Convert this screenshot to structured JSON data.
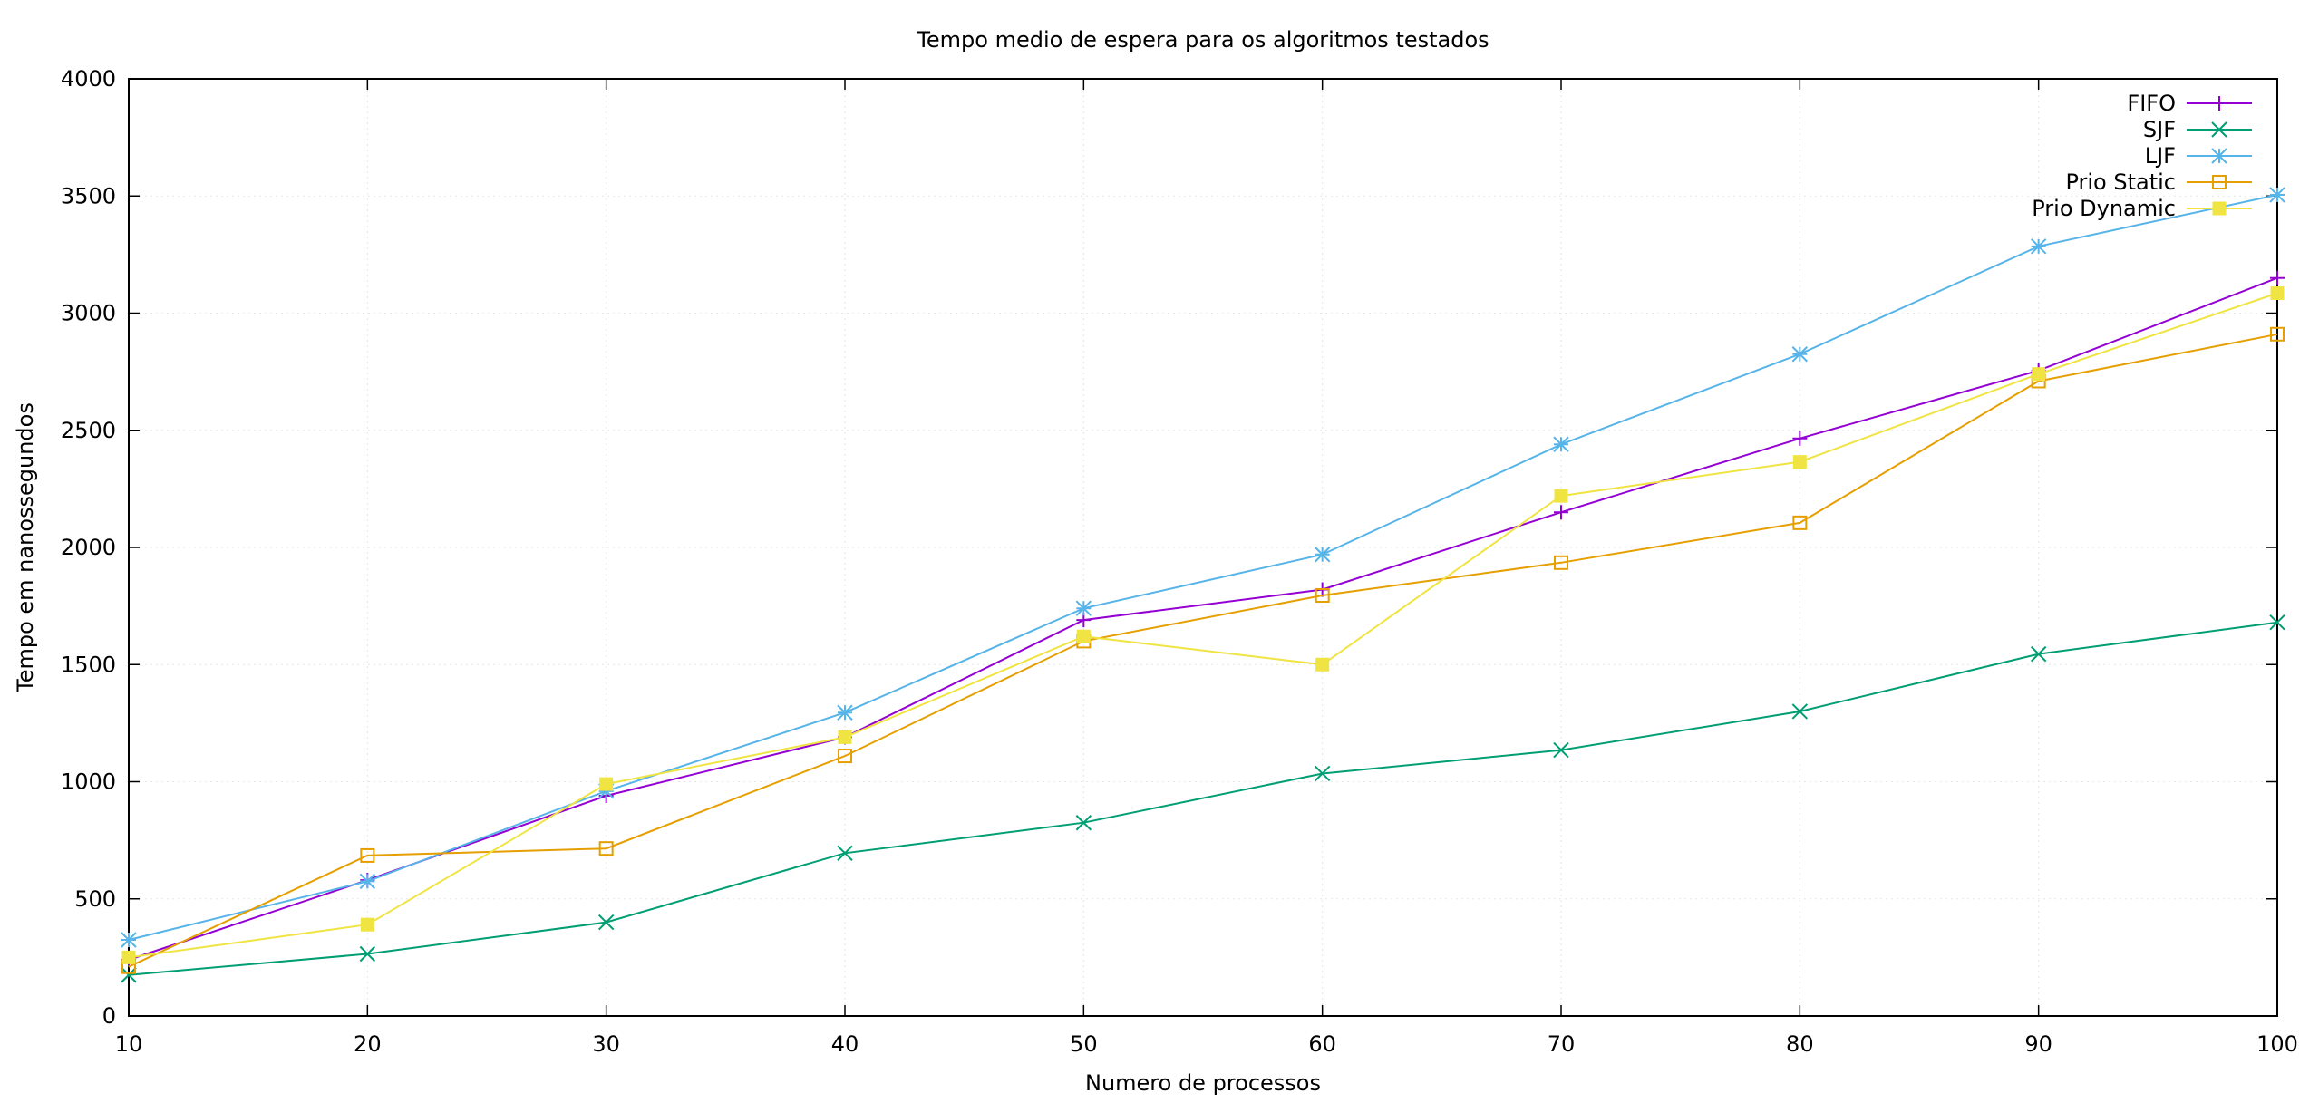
{
  "chart_data": {
    "type": "line",
    "title": "Tempo medio de espera para os algoritmos testados",
    "xlabel": "Numero de processos",
    "ylabel": "Tempo em nanossegundos",
    "x": [
      10,
      20,
      30,
      40,
      50,
      60,
      70,
      80,
      90,
      100
    ],
    "xlim": [
      10,
      100
    ],
    "ylim": [
      0,
      4000
    ],
    "xticks": [
      10,
      20,
      30,
      40,
      50,
      60,
      70,
      80,
      90,
      100
    ],
    "yticks": [
      0,
      500,
      1000,
      1500,
      2000,
      2500,
      3000,
      3500,
      4000
    ],
    "grid": true,
    "legend_position": "top-right",
    "series": [
      {
        "name": "FIFO",
        "color": "#9400d3",
        "marker": "plus",
        "values": [
          240,
          580,
          940,
          1190,
          1690,
          1820,
          2150,
          2465,
          2755,
          3150
        ]
      },
      {
        "name": "SJF",
        "color": "#009e73",
        "marker": "cross",
        "values": [
          175,
          265,
          400,
          695,
          825,
          1035,
          1135,
          1300,
          1545,
          1680
        ]
      },
      {
        "name": "LJF",
        "color": "#56b4e9",
        "marker": "star",
        "values": [
          325,
          575,
          960,
          1295,
          1740,
          1970,
          2440,
          2825,
          3285,
          3505
        ]
      },
      {
        "name": "Prio Static",
        "color": "#e69f00",
        "marker": "open-square",
        "values": [
          210,
          685,
          715,
          1110,
          1600,
          1795,
          1935,
          2105,
          2710,
          2910
        ]
      },
      {
        "name": "Prio Dynamic",
        "color": "#f0e442",
        "marker": "filled-square",
        "values": [
          250,
          390,
          990,
          1190,
          1620,
          1500,
          2220,
          2365,
          2740,
          3085
        ]
      }
    ]
  }
}
